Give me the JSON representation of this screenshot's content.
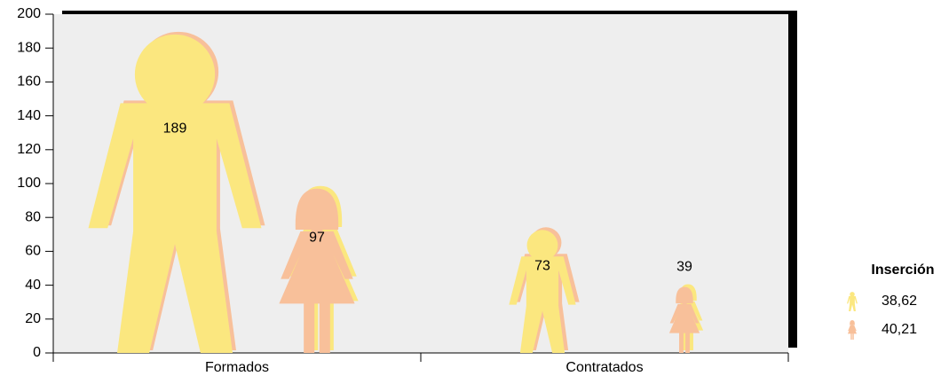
{
  "chart_data": {
    "type": "pictorial",
    "categories": [
      "Formados",
      "Contratados"
    ],
    "legend_title": "Inserción",
    "series": [
      {
        "name": "38,62",
        "color": "#fbe77f",
        "shape": "man",
        "values": [
          189,
          73
        ]
      },
      {
        "name": "40,21",
        "color": "#f8c09a",
        "shape": "woman",
        "values": [
          97,
          39
        ]
      }
    ],
    "ylim": [
      0,
      200
    ],
    "yticks": [
      0,
      20,
      40,
      60,
      80,
      100,
      120,
      140,
      160,
      180,
      200
    ],
    "legend": "right"
  }
}
